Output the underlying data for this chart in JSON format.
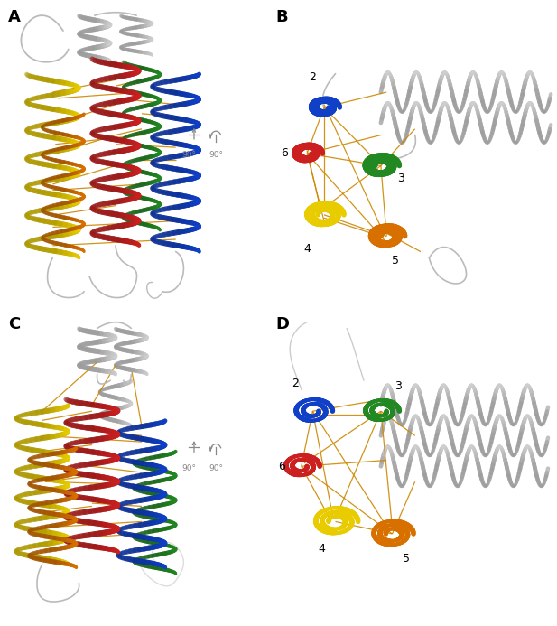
{
  "panel_labels": [
    "A",
    "B",
    "C",
    "D"
  ],
  "panel_label_fontsize": 13,
  "panel_label_weight": "bold",
  "background_color": "#ffffff",
  "helix_colors": {
    "blue": "#1040c8",
    "green": "#228822",
    "red": "#cc2020",
    "yellow": "#e8cc00",
    "orange": "#d87000",
    "light_orange": "#e89020",
    "gray": "#999999",
    "light_gray": "#bbbbbb",
    "white_gray": "#d0d0d0",
    "dark_gray": "#888888"
  },
  "constraint_color": "#cc8800",
  "figsize": [
    6.17,
    6.93
  ],
  "dpi": 100
}
